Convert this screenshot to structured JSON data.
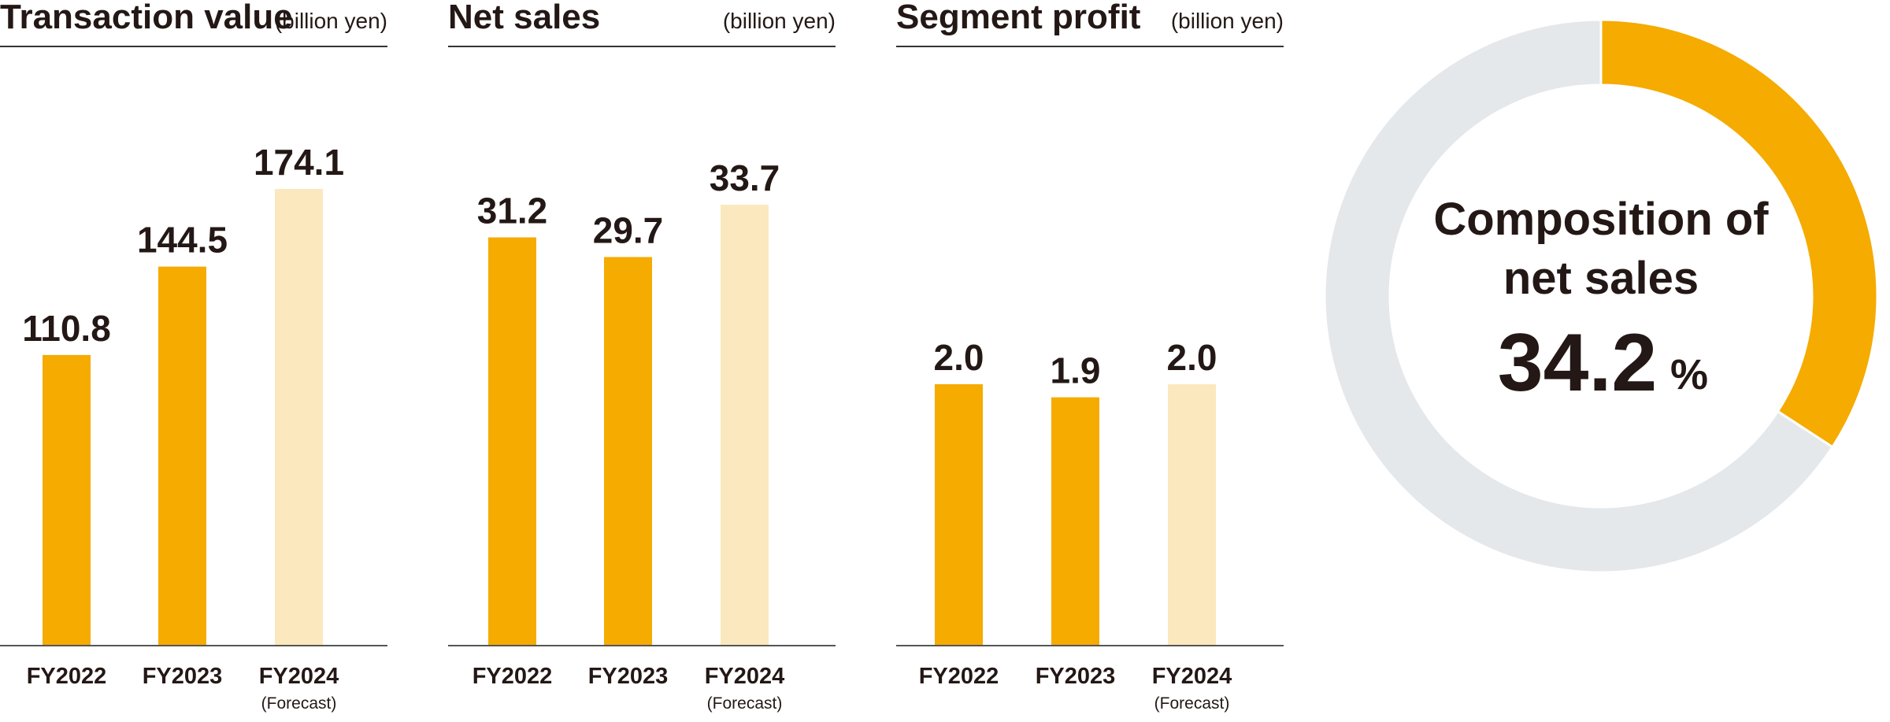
{
  "colors": {
    "actual": "#F5AB00",
    "forecast": "#FCE8BE",
    "remainder": "#E5E8EB",
    "text": "#231815"
  },
  "chart_data": [
    {
      "type": "bar",
      "title": "Transaction value",
      "unit": "(billion yen)",
      "categories": [
        "FY2022",
        "FY2023",
        "FY2024"
      ],
      "category_sublabels": [
        "",
        "",
        "(Forecast)"
      ],
      "values": [
        110.8,
        144.5,
        174.1
      ],
      "value_labels": [
        "110.8",
        "144.5",
        "174.1"
      ],
      "forecast": [
        false,
        false,
        true
      ],
      "ylim": [
        0,
        174.1
      ]
    },
    {
      "type": "bar",
      "title": "Net sales",
      "unit": "(billion yen)",
      "categories": [
        "FY2022",
        "FY2023",
        "FY2024"
      ],
      "category_sublabels": [
        "",
        "",
        "(Forecast)"
      ],
      "values": [
        31.2,
        29.7,
        33.7
      ],
      "value_labels": [
        "31.2",
        "29.7",
        "33.7"
      ],
      "forecast": [
        false,
        false,
        true
      ],
      "ylim": [
        0,
        33.7
      ]
    },
    {
      "type": "bar",
      "title": "Segment profit",
      "unit": "(billion yen)",
      "categories": [
        "FY2022",
        "FY2023",
        "FY2024"
      ],
      "category_sublabels": [
        "",
        "",
        "(Forecast)"
      ],
      "values": [
        2.0,
        1.9,
        2.0
      ],
      "value_labels": [
        "2.0",
        "1.9",
        "2.0"
      ],
      "forecast": [
        false,
        false,
        true
      ],
      "ylim": [
        0,
        3.5
      ]
    },
    {
      "type": "pie",
      "title_line1": "Composition of",
      "title_line2": "net sales",
      "value": 34.2,
      "value_label": "34.2",
      "percent_sign": "%"
    }
  ]
}
